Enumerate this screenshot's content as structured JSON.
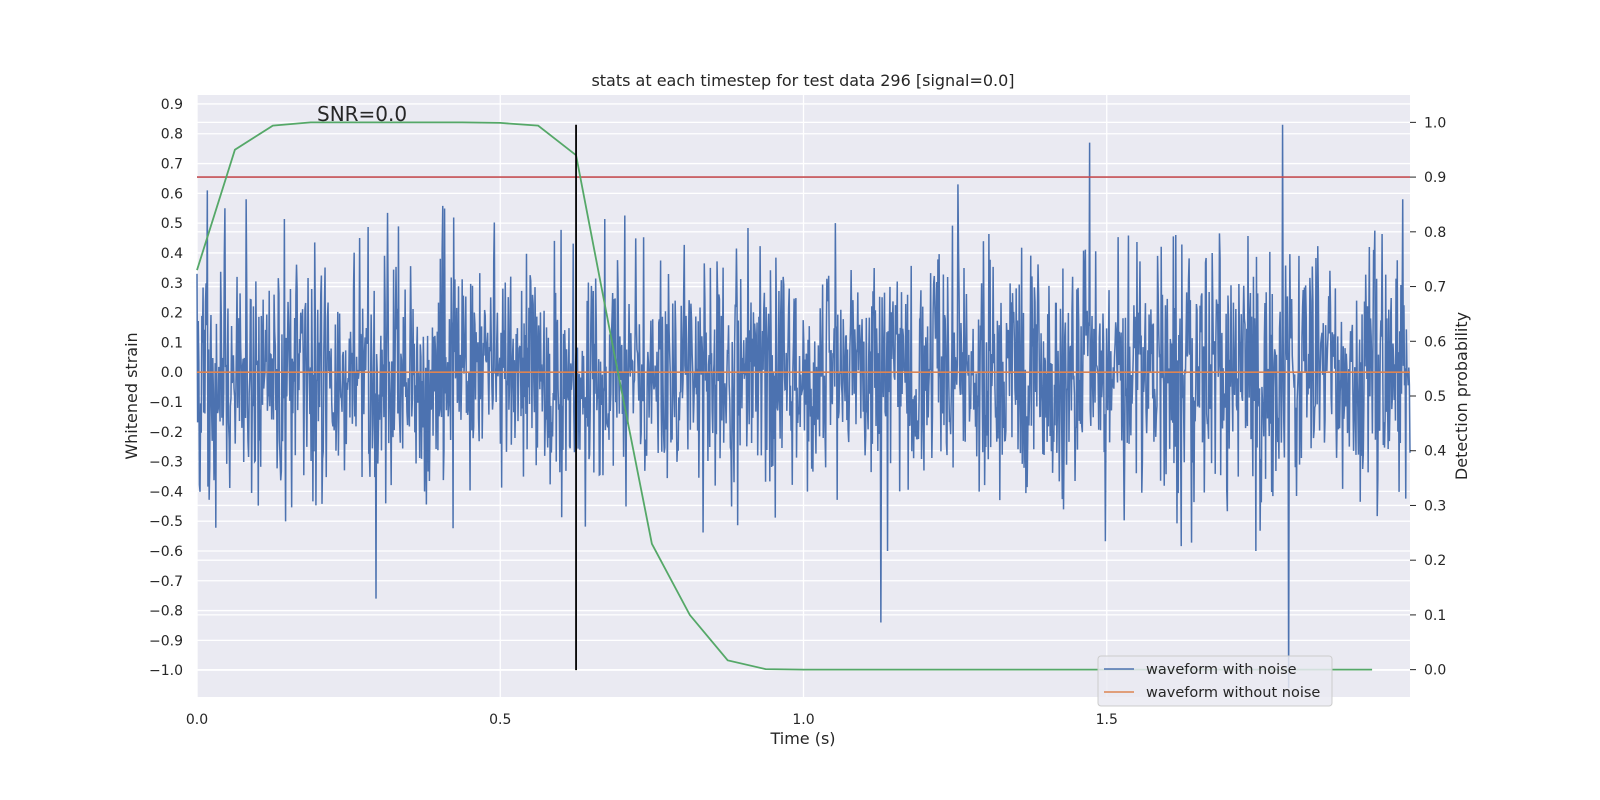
{
  "chart_data": {
    "type": "line",
    "title": "stats at each timestep for test data 296 [signal=0.0]",
    "xlabel": "Time (s)",
    "ylabel": "Whitened strain",
    "y2label": "Detection probability",
    "annotation": "SNR=0.0",
    "xlim": [
      0.0,
      2.0
    ],
    "ylim": [
      -1.09,
      0.93
    ],
    "y2lim": [
      -0.05,
      1.05
    ],
    "xticks": [
      0.0,
      0.5,
      1.0,
      1.5
    ],
    "xtick_labels": [
      "0.0",
      "0.5",
      "1.0",
      "1.5"
    ],
    "yticks": [
      0.9,
      0.8,
      0.7,
      0.6,
      0.5,
      0.4,
      0.3,
      0.2,
      0.1,
      0.0,
      -0.1,
      -0.2,
      -0.3,
      -0.4,
      -0.5,
      -0.6,
      -0.7,
      -0.8,
      -0.9,
      -1.0
    ],
    "ytick_labels": [
      "0.9",
      "0.8",
      "0.7",
      "0.6",
      "0.5",
      "0.4",
      "0.3",
      "0.2",
      "0.1",
      "0.0",
      "−0.1",
      "−0.2",
      "−0.3",
      "−0.4",
      "−0.5",
      "−0.6",
      "−0.7",
      "−0.8",
      "−0.9",
      "−1.0"
    ],
    "y2ticks": [
      0.0,
      0.1,
      0.2,
      0.3,
      0.4,
      0.5,
      0.6,
      0.7,
      0.8,
      0.9,
      1.0
    ],
    "y2tick_labels": [
      "0.0",
      "0.1",
      "0.2",
      "0.3",
      "0.4",
      "0.5",
      "0.6",
      "0.7",
      "0.8",
      "0.9",
      "1.0"
    ],
    "grid": true,
    "legend_position": "bottom-right",
    "series": [
      {
        "name": "waveform with noise",
        "color": "#4c72b0",
        "axis": "left",
        "x_range": [
          0.0,
          2.0
        ],
        "sample_count": 2000,
        "notable_points": [
          {
            "x": 0.0,
            "y": 0.33
          },
          {
            "x": 0.017,
            "y": 0.61
          },
          {
            "x": 0.295,
            "y": -0.76
          },
          {
            "x": 1.128,
            "y": -0.84
          },
          {
            "x": 1.255,
            "y": 0.63
          },
          {
            "x": 1.472,
            "y": 0.77
          },
          {
            "x": 1.79,
            "y": 0.83
          },
          {
            "x": 1.8,
            "y": -1.06
          }
        ]
      },
      {
        "name": "waveform without noise",
        "color": "#dd8452",
        "axis": "left",
        "x": [
          0.0,
          2.0
        ],
        "y": [
          0.0,
          0.0
        ]
      },
      {
        "color": "#55a868",
        "axis": "right",
        "x": [
          0.0,
          0.0625,
          0.125,
          0.1875,
          0.25,
          0.3125,
          0.375,
          0.4375,
          0.5,
          0.5625,
          0.625,
          0.6875,
          0.75,
          0.8125,
          0.875,
          0.9375,
          1.0,
          1.0625,
          1.125,
          1.1875,
          1.25,
          1.3125,
          1.375,
          1.4375,
          1.5,
          1.5625,
          1.625,
          1.6875,
          1.75,
          1.8125,
          1.875,
          1.9375
        ],
        "y": [
          0.73,
          0.95,
          0.994,
          1.0,
          1.0,
          1.0,
          1.0,
          1.0,
          0.999,
          0.994,
          0.94,
          0.58,
          0.23,
          0.1,
          0.017,
          0.001,
          0.0,
          0.0,
          0.0,
          0.0,
          0.0,
          0.0,
          0.0,
          0.0,
          0.0,
          0.0,
          0.0,
          0.0,
          0.0,
          0.0,
          0.0,
          0.0
        ]
      }
    ],
    "threshold": {
      "axis": "right",
      "y": 0.9,
      "color": "#c44e52"
    },
    "vertical_marker": {
      "x": 0.625,
      "y_from": -1.0,
      "y_to": 0.83,
      "color": "#000000"
    }
  },
  "legend": {
    "items": [
      {
        "label": "waveform with noise",
        "color": "#4c72b0"
      },
      {
        "label": "waveform without noise",
        "color": "#dd8452"
      }
    ]
  },
  "colors": {
    "plot_background": "#eaeaf2",
    "grid": "#ffffff",
    "text": "#262626"
  }
}
